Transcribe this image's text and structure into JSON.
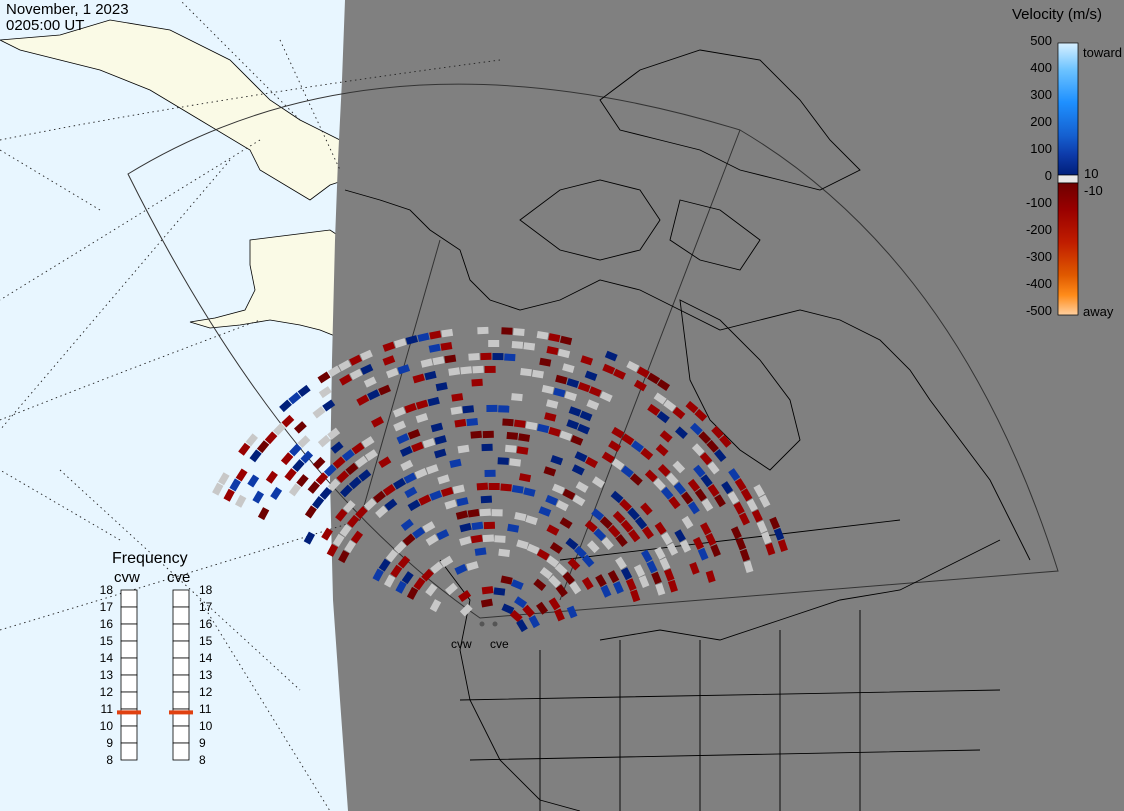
{
  "header": {
    "date": "November, 1 2023",
    "time": "0205:00 UT"
  },
  "colorbar": {
    "title": "Velocity (m/s)",
    "ticks": [
      "500",
      "400",
      "300",
      "200",
      "100",
      "0",
      "-100",
      "-200",
      "-300",
      "-400",
      "-500"
    ],
    "toward_label": "toward",
    "away_label": "away",
    "near_zero_pos": "10",
    "near_zero_neg": "-10",
    "colors": {
      "toward": [
        "#d8f0ff",
        "#6ec4ff",
        "#1e90ff",
        "#1560d0",
        "#0d3aa8",
        "#001f7a"
      ],
      "away": [
        "#6e0000",
        "#990000",
        "#c01d00",
        "#e05a00",
        "#ff8c1a",
        "#ffd0a0"
      ],
      "ground_scatter": "#c8c8c8"
    }
  },
  "frequency": {
    "title": "Frequency",
    "radars": [
      "cvw",
      "cve"
    ],
    "scale": [
      "18",
      "17",
      "16",
      "15",
      "14",
      "13",
      "12",
      "11",
      "10",
      "9",
      "8"
    ],
    "values_mhz": [
      10.8,
      10.8
    ],
    "indicator_color": "#e04010"
  },
  "map": {
    "radar_sites": [
      "cvw",
      "cve"
    ],
    "colors": {
      "ocean": "#e8f6ff",
      "land": "#fafae6",
      "night": "#808080",
      "coast": "#000000"
    }
  }
}
